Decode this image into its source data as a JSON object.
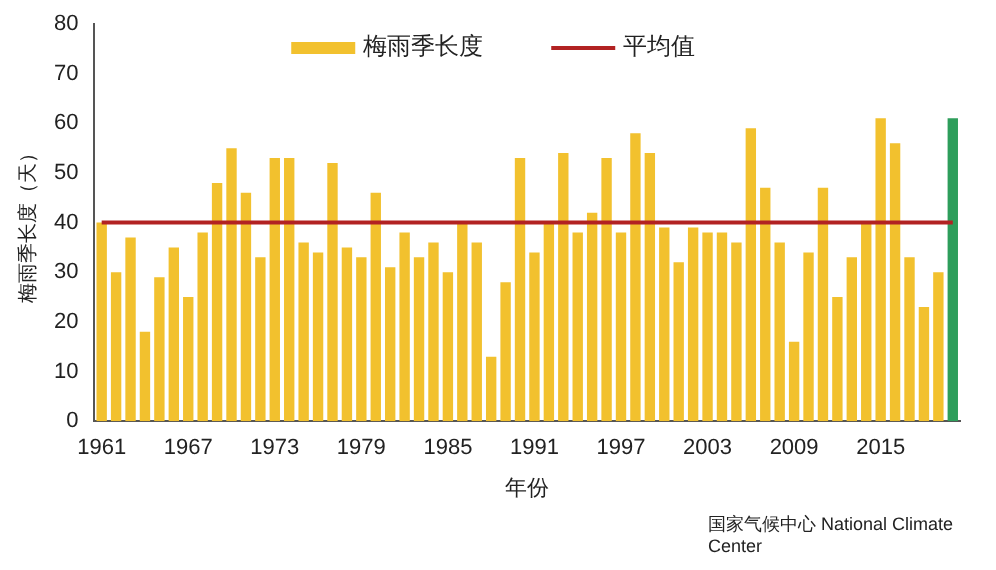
{
  "chart_data": {
    "type": "bar",
    "xlabel": "年份",
    "ylabel": "梅雨季长度（天）",
    "categories": [
      "1961",
      null,
      null,
      null,
      null,
      null,
      "1967",
      null,
      null,
      null,
      null,
      null,
      "1973",
      null,
      null,
      null,
      null,
      null,
      "1979",
      null,
      null,
      null,
      null,
      null,
      "1985",
      null,
      null,
      null,
      null,
      null,
      "1991",
      null,
      null,
      null,
      null,
      null,
      "1997",
      null,
      null,
      null,
      null,
      null,
      "2003",
      null,
      null,
      null,
      null,
      null,
      "2009",
      null,
      null,
      null,
      null,
      null,
      "2015",
      null,
      null,
      null,
      null,
      null
    ],
    "series": [
      {
        "name": "梅雨季长度",
        "color": "#f2c12e",
        "colors": [
          "#f2c12e",
          "#f2c12e",
          "#f2c12e",
          "#f2c12e",
          "#f2c12e",
          "#f2c12e",
          "#f2c12e",
          "#f2c12e",
          "#f2c12e",
          "#f2c12e",
          "#f2c12e",
          "#f2c12e",
          "#f2c12e",
          "#f2c12e",
          "#f2c12e",
          "#f2c12e",
          "#f2c12e",
          "#f2c12e",
          "#f2c12e",
          "#f2c12e",
          "#f2c12e",
          "#f2c12e",
          "#f2c12e",
          "#f2c12e",
          "#f2c12e",
          "#f2c12e",
          "#f2c12e",
          "#f2c12e",
          "#f2c12e",
          "#f2c12e",
          "#f2c12e",
          "#f2c12e",
          "#f2c12e",
          "#f2c12e",
          "#f2c12e",
          "#f2c12e",
          "#f2c12e",
          "#f2c12e",
          "#f2c12e",
          "#f2c12e",
          "#f2c12e",
          "#f2c12e",
          "#f2c12e",
          "#f2c12e",
          "#f2c12e",
          "#f2c12e",
          "#f2c12e",
          "#f2c12e",
          "#f2c12e",
          "#f2c12e",
          "#f2c12e",
          "#f2c12e",
          "#f2c12e",
          "#f2c12e",
          "#f2c12e",
          "#f2c12e",
          "#f2c12e",
          "#f2c12e",
          "#f2c12e",
          "#2e9e5b"
        ],
        "values": [
          40,
          30,
          37,
          18,
          29,
          35,
          25,
          38,
          48,
          55,
          46,
          33,
          53,
          53,
          36,
          34,
          52,
          35,
          33,
          46,
          31,
          38,
          33,
          36,
          30,
          40,
          36,
          13,
          28,
          53,
          34,
          40,
          54,
          38,
          42,
          53,
          38,
          58,
          54,
          39,
          32,
          39,
          38,
          38,
          36,
          59,
          47,
          36,
          16,
          34,
          47,
          25,
          33,
          40,
          61,
          56,
          33,
          23,
          30,
          61
        ]
      },
      {
        "name": "平均值",
        "type": "line",
        "color": "#b22222",
        "values": [
          40,
          40,
          40,
          40,
          40,
          40,
          40,
          40,
          40,
          40,
          40,
          40,
          40,
          40,
          40,
          40,
          40,
          40,
          40,
          40,
          40,
          40,
          40,
          40,
          40,
          40,
          40,
          40,
          40,
          40,
          40,
          40,
          40,
          40,
          40,
          40,
          40,
          40,
          40,
          40,
          40,
          40,
          40,
          40,
          40,
          40,
          40,
          40,
          40,
          40,
          40,
          40,
          40,
          40,
          40,
          40,
          40,
          40,
          40,
          40
        ]
      }
    ],
    "ylim": [
      0,
      80
    ],
    "yticks": [
      0,
      10,
      20,
      30,
      40,
      50,
      60,
      70,
      80
    ],
    "grid": false,
    "legend": "top",
    "annotations": [
      "国家气候中心 National Climate Center"
    ]
  }
}
